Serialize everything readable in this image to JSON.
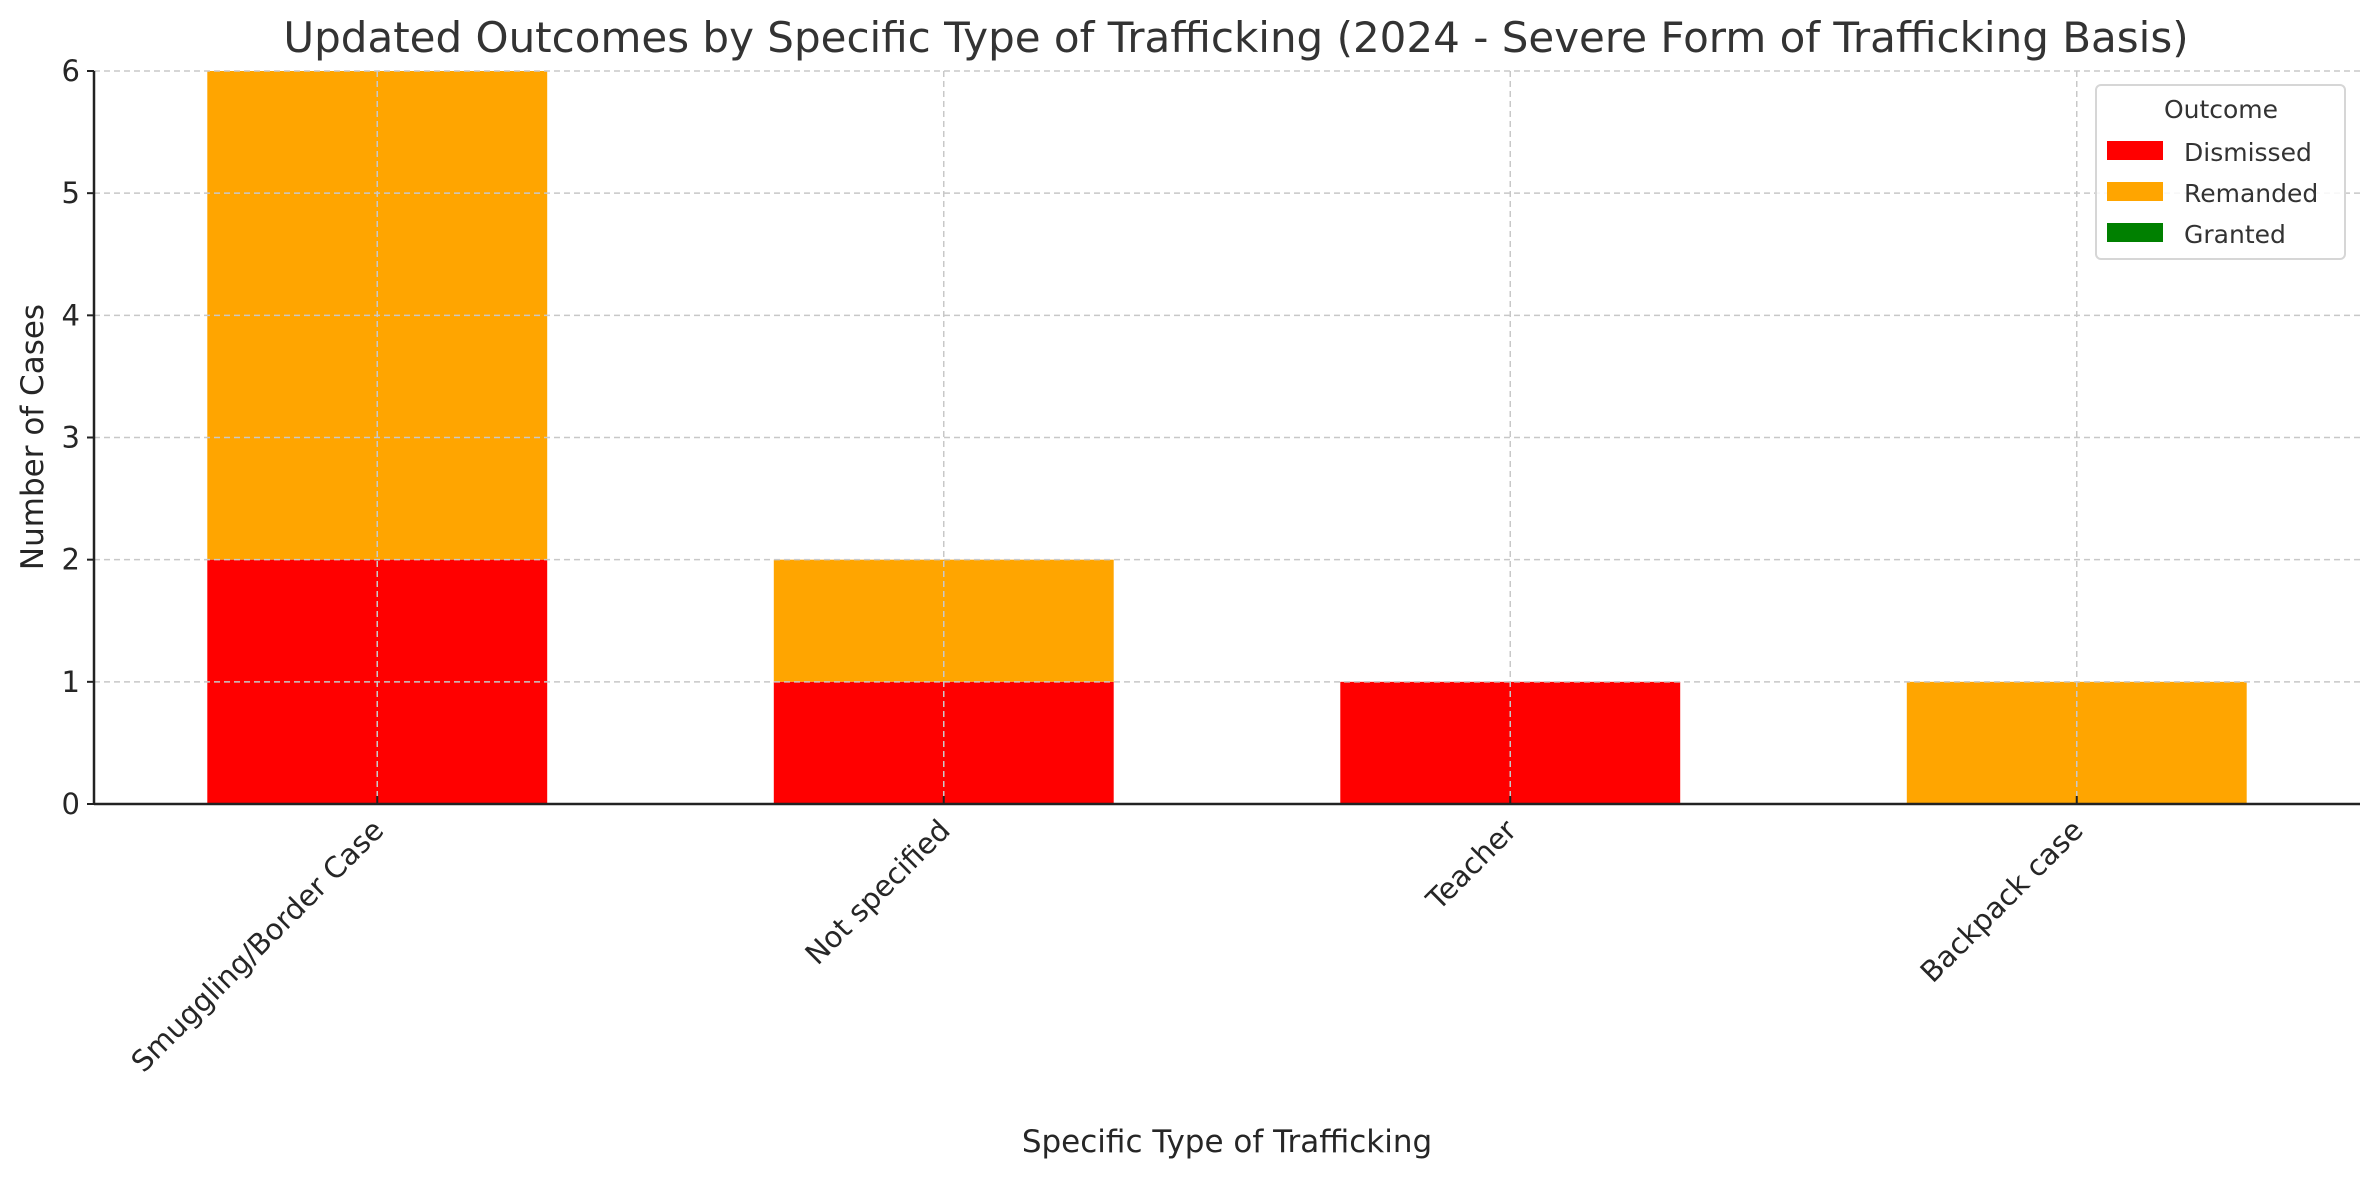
{
  "chart_data": {
    "type": "bar",
    "stacked": true,
    "title": "Updated Outcomes by Specific Type of Trafficking (2024 - Severe Form of Trafficking Basis)",
    "xlabel": "Specific Type of Trafficking",
    "ylabel": "Number of Cases",
    "categories": [
      "Smuggling/Border Case",
      "Not specified",
      "Teacher",
      "Backpack case"
    ],
    "series": [
      {
        "name": "Dismissed",
        "color": "#ff0000",
        "values": [
          2,
          1,
          1,
          0
        ]
      },
      {
        "name": "Remanded",
        "color": "#ffa500",
        "values": [
          4,
          1,
          0,
          1
        ]
      },
      {
        "name": "Granted",
        "color": "#008000",
        "values": [
          0,
          0,
          0,
          0
        ]
      }
    ],
    "ylim": [
      0,
      6
    ],
    "yticks": [
      0,
      1,
      2,
      3,
      4,
      5,
      6
    ],
    "grid": true,
    "legend": {
      "title": "Outcome",
      "placement": "top-right"
    }
  }
}
